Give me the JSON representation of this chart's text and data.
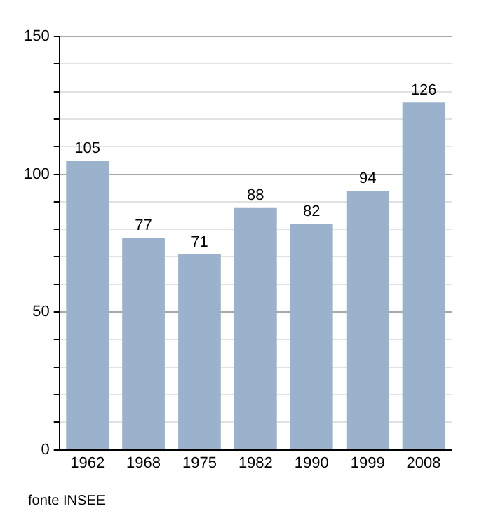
{
  "chart_data": {
    "type": "bar",
    "categories": [
      "1962",
      "1968",
      "1975",
      "1982",
      "1990",
      "1999",
      "2008"
    ],
    "values": [
      105,
      77,
      71,
      88,
      82,
      94,
      126
    ],
    "color": "#9ab2cb",
    "data_labels": true,
    "grid": "y",
    "ylim": [
      0,
      150
    ],
    "yticks": [
      0,
      {
        "value": 10,
        "label": null
      },
      {
        "value": 20,
        "label": null
      },
      {
        "value": 30,
        "label": null
      },
      {
        "value": 40,
        "label": null
      },
      50,
      {
        "value": 60,
        "label": null
      },
      {
        "value": 70,
        "label": null
      },
      {
        "value": 80,
        "label": null
      },
      {
        "value": 90,
        "label": null
      },
      100,
      {
        "value": 110,
        "label": null
      },
      {
        "value": 120,
        "label": null
      },
      {
        "value": 130,
        "label": null
      },
      {
        "value": 140,
        "label": null
      },
      150
    ],
    "annotations": [
      "fonte INSEE"
    ]
  }
}
